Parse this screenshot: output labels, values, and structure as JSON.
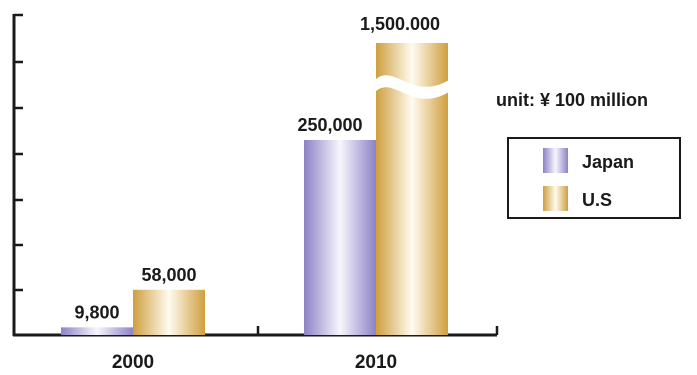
{
  "chart_data": {
    "type": "bar",
    "categories": [
      "2000",
      "2010"
    ],
    "series": [
      {
        "name": "Japan",
        "values": [
          9800,
          250000
        ],
        "value_labels": [
          "9,800",
          "250,000"
        ],
        "color": "#9e95d1"
      },
      {
        "name": "U.S",
        "values": [
          58000,
          1500000
        ],
        "value_labels": [
          "58,000",
          "1,500.000"
        ],
        "color": "#d6a950"
      }
    ],
    "unit_label": "unit: ¥ 100 million",
    "axis_break": true,
    "grid": false,
    "legend": "right"
  }
}
